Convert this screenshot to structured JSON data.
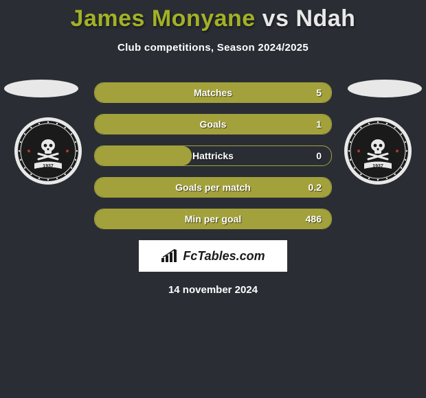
{
  "title": {
    "player1": "James Monyane",
    "vs": "vs",
    "player2": "Ndah",
    "player1_color": "#a3b126",
    "vs_color": "#e8e8e8",
    "player2_color": "#e8e8e8",
    "fontsize": 34
  },
  "subtitle": "Club competitions, Season 2024/2025",
  "background_color": "#2a2e34",
  "bar_style": {
    "fill_color": "#a3a13b",
    "border_color": "#a3a13b",
    "text_color": "#ffffff",
    "label_fontsize": 14,
    "height": 30,
    "radius": 14
  },
  "stats": [
    {
      "label": "Matches",
      "value": "5",
      "fill_pct": 100
    },
    {
      "label": "Goals",
      "value": "1",
      "fill_pct": 100
    },
    {
      "label": "Hattricks",
      "value": "0",
      "fill_pct": 41
    },
    {
      "label": "Goals per match",
      "value": "0.2",
      "fill_pct": 100
    },
    {
      "label": "Min per goal",
      "value": "486",
      "fill_pct": 100
    }
  ],
  "crests": {
    "left": {
      "name": "orlando-pirates",
      "primary": "#1a1a1a",
      "ring": "#e8e8e8",
      "accent": "#b53434",
      "text": "1937"
    },
    "right": {
      "name": "orlando-pirates",
      "primary": "#1a1a1a",
      "ring": "#e8e8e8",
      "accent": "#b53434",
      "text": "1937"
    }
  },
  "logo_text": "FcTables.com",
  "date": "14 november 2024"
}
